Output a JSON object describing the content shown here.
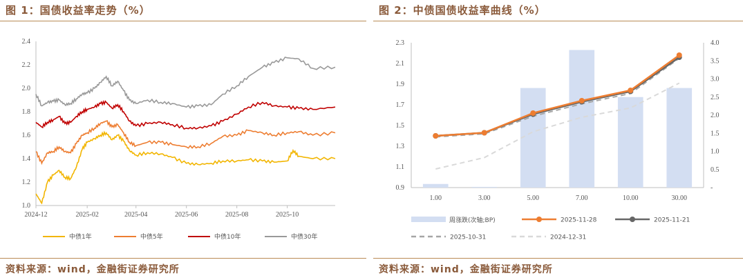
{
  "left": {
    "title": "图 1：国债收益率走势（%）",
    "source": "资料来源：wind，金融街证券研究所"
  },
  "right": {
    "title": "图 2：中债国债收益率曲线（%）",
    "source": "资料来源：wind，金融街证券研究所"
  },
  "chart_data": [
    {
      "type": "line",
      "title": "",
      "xlabel": "",
      "ylabel": "",
      "ylim": [
        1.0,
        2.4
      ],
      "yticks": [
        "1.0",
        "1.2",
        "1.4",
        "1.6",
        "1.8",
        "2.0",
        "2.2",
        "2.4"
      ],
      "x_ticks": [
        "2024-12",
        "2025-02",
        "2025-04",
        "2025-06",
        "2025-08",
        "2025-10"
      ],
      "x_range": [
        "2024-12",
        "2025-11-28"
      ],
      "grid": false,
      "legend": "bottom",
      "colors": {
        "中债1年": "#f2b500",
        "中债5年": "#ed7d31",
        "中债10年": "#c00000",
        "中债30年": "#999999"
      },
      "series": [
        {
          "name": "中债1年",
          "points": [
            [
              "2024-12",
              1.1
            ],
            [
              "2024-12-08",
              1.02
            ],
            [
              "2024-12-15",
              1.2
            ],
            [
              "2024-12-22",
              1.26
            ],
            [
              "2024-12-29",
              1.3
            ],
            [
              "2025-01-05",
              1.24
            ],
            [
              "2025-01-12",
              1.23
            ],
            [
              "2025-01-19",
              1.33
            ],
            [
              "2025-01-26",
              1.48
            ],
            [
              "2025-02",
              1.54
            ],
            [
              "2025-02-10",
              1.57
            ],
            [
              "2025-02-17",
              1.6
            ],
            [
              "2025-02-24",
              1.62
            ],
            [
              "2025-03-03",
              1.56
            ],
            [
              "2025-03-10",
              1.6
            ],
            [
              "2025-03-17",
              1.55
            ],
            [
              "2025-03-24",
              1.47
            ],
            [
              "2025-04",
              1.43
            ],
            [
              "2025-04-15",
              1.45
            ],
            [
              "2025-05",
              1.44
            ],
            [
              "2025-05-15",
              1.41
            ],
            [
              "2025-06",
              1.36
            ],
            [
              "2025-06-15",
              1.35
            ],
            [
              "2025-07",
              1.36
            ],
            [
              "2025-07-15",
              1.38
            ],
            [
              "2025-08",
              1.38
            ],
            [
              "2025-08-15",
              1.39
            ],
            [
              "2025-09",
              1.38
            ],
            [
              "2025-09-15",
              1.37
            ],
            [
              "2025-10",
              1.38
            ],
            [
              "2025-10-08",
              1.47
            ],
            [
              "2025-10-15",
              1.42
            ],
            [
              "2025-11",
              1.4
            ],
            [
              "2025-11-28",
              1.4
            ]
          ]
        },
        {
          "name": "中债5年",
          "points": [
            [
              "2024-12",
              1.46
            ],
            [
              "2024-12-08",
              1.36
            ],
            [
              "2024-12-15",
              1.45
            ],
            [
              "2024-12-22",
              1.46
            ],
            [
              "2024-12-29",
              1.5
            ],
            [
              "2025-01-05",
              1.46
            ],
            [
              "2025-01-12",
              1.45
            ],
            [
              "2025-01-19",
              1.53
            ],
            [
              "2025-01-26",
              1.6
            ],
            [
              "2025-02",
              1.62
            ],
            [
              "2025-02-10",
              1.66
            ],
            [
              "2025-02-17",
              1.7
            ],
            [
              "2025-02-24",
              1.72
            ],
            [
              "2025-03-03",
              1.67
            ],
            [
              "2025-03-10",
              1.69
            ],
            [
              "2025-03-17",
              1.62
            ],
            [
              "2025-03-24",
              1.54
            ],
            [
              "2025-04",
              1.51
            ],
            [
              "2025-04-15",
              1.54
            ],
            [
              "2025-05",
              1.54
            ],
            [
              "2025-05-15",
              1.52
            ],
            [
              "2025-06",
              1.5
            ],
            [
              "2025-06-15",
              1.5
            ],
            [
              "2025-07",
              1.53
            ],
            [
              "2025-07-15",
              1.59
            ],
            [
              "2025-08",
              1.6
            ],
            [
              "2025-08-15",
              1.64
            ],
            [
              "2025-09",
              1.62
            ],
            [
              "2025-09-15",
              1.6
            ],
            [
              "2025-10",
              1.62
            ],
            [
              "2025-10-15",
              1.63
            ],
            [
              "2025-11",
              1.6
            ],
            [
              "2025-11-28",
              1.62
            ]
          ]
        },
        {
          "name": "中债10年",
          "points": [
            [
              "2024-12",
              1.71
            ],
            [
              "2024-12-08",
              1.67
            ],
            [
              "2024-12-15",
              1.71
            ],
            [
              "2024-12-22",
              1.73
            ],
            [
              "2024-12-29",
              1.76
            ],
            [
              "2025-01-05",
              1.7
            ],
            [
              "2025-01-12",
              1.71
            ],
            [
              "2025-01-19",
              1.76
            ],
            [
              "2025-01-26",
              1.8
            ],
            [
              "2025-02",
              1.82
            ],
            [
              "2025-02-10",
              1.84
            ],
            [
              "2025-02-17",
              1.87
            ],
            [
              "2025-02-24",
              1.88
            ],
            [
              "2025-03-03",
              1.83
            ],
            [
              "2025-03-10",
              1.86
            ],
            [
              "2025-03-17",
              1.8
            ],
            [
              "2025-03-24",
              1.72
            ],
            [
              "2025-04",
              1.68
            ],
            [
              "2025-04-15",
              1.7
            ],
            [
              "2025-05",
              1.71
            ],
            [
              "2025-05-15",
              1.69
            ],
            [
              "2025-06",
              1.66
            ],
            [
              "2025-06-15",
              1.66
            ],
            [
              "2025-07",
              1.68
            ],
            [
              "2025-07-15",
              1.72
            ],
            [
              "2025-08",
              1.78
            ],
            [
              "2025-08-15",
              1.84
            ],
            [
              "2025-09",
              1.88
            ],
            [
              "2025-09-15",
              1.85
            ],
            [
              "2025-10",
              1.84
            ],
            [
              "2025-10-15",
              1.83
            ],
            [
              "2025-11",
              1.82
            ],
            [
              "2025-11-28",
              1.84
            ]
          ]
        },
        {
          "name": "中债30年",
          "points": [
            [
              "2024-12",
              1.95
            ],
            [
              "2024-12-08",
              1.85
            ],
            [
              "2024-12-15",
              1.88
            ],
            [
              "2024-12-22",
              1.89
            ],
            [
              "2024-12-29",
              1.9
            ],
            [
              "2025-01-05",
              1.86
            ],
            [
              "2025-01-12",
              1.87
            ],
            [
              "2025-01-19",
              1.91
            ],
            [
              "2025-01-26",
              1.95
            ],
            [
              "2025-02",
              1.96
            ],
            [
              "2025-02-10",
              2.0
            ],
            [
              "2025-02-17",
              2.05
            ],
            [
              "2025-02-24",
              2.1
            ],
            [
              "2025-03-03",
              2.02
            ],
            [
              "2025-03-10",
              2.06
            ],
            [
              "2025-03-17",
              1.98
            ],
            [
              "2025-03-24",
              1.9
            ],
            [
              "2025-04",
              1.87
            ],
            [
              "2025-04-15",
              1.9
            ],
            [
              "2025-05",
              1.88
            ],
            [
              "2025-05-15",
              1.87
            ],
            [
              "2025-06",
              1.84
            ],
            [
              "2025-06-15",
              1.85
            ],
            [
              "2025-07",
              1.86
            ],
            [
              "2025-07-15",
              1.95
            ],
            [
              "2025-08",
              2.02
            ],
            [
              "2025-08-15",
              2.1
            ],
            [
              "2025-09",
              2.18
            ],
            [
              "2025-09-15",
              2.22
            ],
            [
              "2025-10",
              2.26
            ],
            [
              "2025-10-15",
              2.25
            ],
            [
              "2025-11",
              2.17
            ],
            [
              "2025-11-28",
              2.18
            ]
          ]
        }
      ]
    },
    {
      "type": "bar+line",
      "title": "",
      "categories": [
        "1.00",
        "3.00",
        "5.00",
        "7.00",
        "10.00",
        "30.00"
      ],
      "ylim": [
        0.9,
        2.3
      ],
      "yticks": [
        "0.9",
        "1.1",
        "1.3",
        "1.5",
        "1.7",
        "1.9",
        "2.1",
        "2.3"
      ],
      "y2lim": [
        0,
        4.0
      ],
      "y2ticks": [
        "-",
        "0.5",
        "1.0",
        "1.5",
        "2.0",
        "2.5",
        "3.0",
        "3.5",
        "4.0"
      ],
      "grid": false,
      "legend": "bottom",
      "bars": {
        "name": "周涨跌(次轴;BP)",
        "axis": "secondary",
        "color": "#d3def2",
        "values": [
          0.1,
          0.02,
          2.75,
          3.8,
          2.5,
          2.75
        ]
      },
      "series": [
        {
          "name": "2025-11-28",
          "color": "#ed7d31",
          "style": "solid-marker",
          "values": [
            1.4,
            1.43,
            1.62,
            1.74,
            1.84,
            2.18
          ]
        },
        {
          "name": "2025-11-21",
          "color": "#666666",
          "style": "solid-marker",
          "values": [
            1.4,
            1.43,
            1.61,
            1.73,
            1.83,
            2.16
          ]
        },
        {
          "name": "2025-10-31",
          "color": "#a6a6a6",
          "style": "dashed",
          "values": [
            1.39,
            1.42,
            1.59,
            1.71,
            1.81,
            2.15
          ]
        },
        {
          "name": "2024-12-31",
          "color": "#d9d9d9",
          "style": "dashed",
          "values": [
            1.08,
            1.19,
            1.44,
            1.58,
            1.67,
            1.91
          ]
        }
      ]
    }
  ]
}
